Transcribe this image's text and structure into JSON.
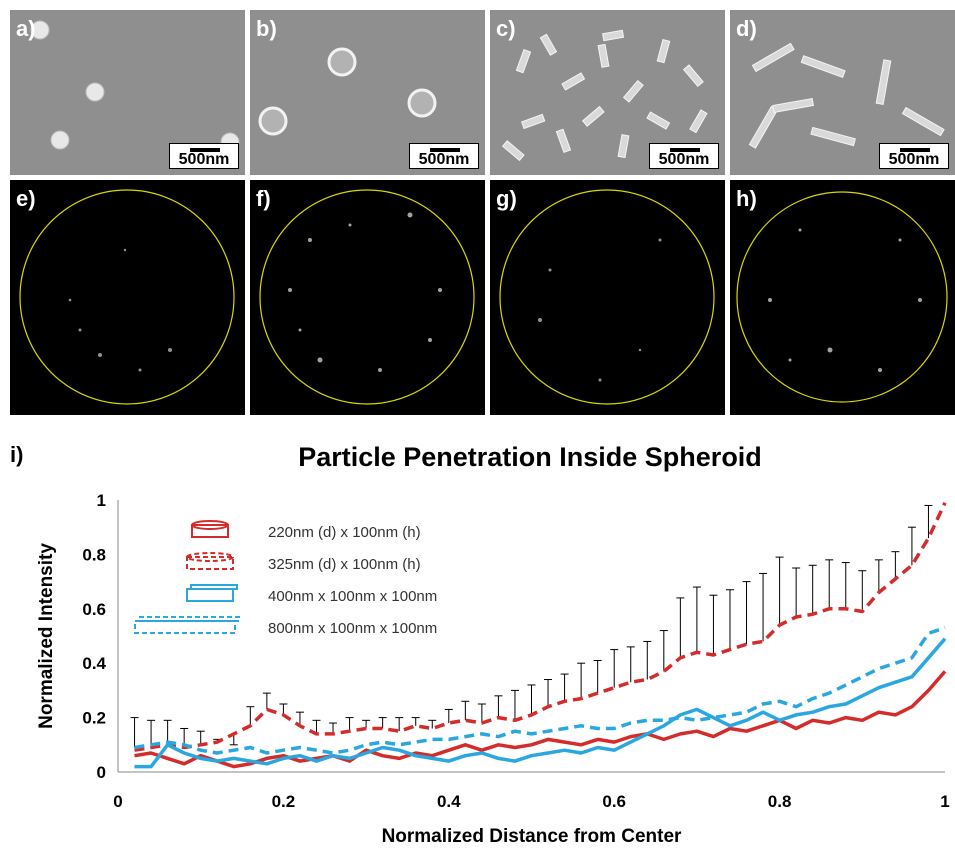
{
  "panels": {
    "a": "a)",
    "b": "b)",
    "c": "c)",
    "d": "d)",
    "e": "e)",
    "f": "f)",
    "g": "g)",
    "h": "h)",
    "i": "i)"
  },
  "scale_bar_label": "500nm",
  "colors": {
    "red": "#d42b2b",
    "blue": "#2aa7df",
    "circle": "#d8d800"
  },
  "chart_data": {
    "type": "line",
    "title": "Particle Penetration Inside Spheroid",
    "xlabel": "Normalized Distance from Center",
    "ylabel": "Normalized Intensity",
    "xlim": [
      0,
      1
    ],
    "ylim": [
      0,
      1
    ],
    "xticks": [
      "0",
      "0.2",
      "0.4",
      "0.6",
      "0.8",
      "1"
    ],
    "yticks": [
      "0",
      "0.2",
      "0.4",
      "0.6",
      "0.8",
      "1"
    ],
    "legend_position": "top-left",
    "series": [
      {
        "name": "220nm (d) x 100nm (h)",
        "color": "#d42b2b",
        "dash": false,
        "x": [
          0.02,
          0.04,
          0.06,
          0.08,
          0.1,
          0.12,
          0.14,
          0.16,
          0.18,
          0.2,
          0.22,
          0.24,
          0.26,
          0.28,
          0.3,
          0.32,
          0.34,
          0.36,
          0.38,
          0.4,
          0.42,
          0.44,
          0.46,
          0.48,
          0.5,
          0.52,
          0.54,
          0.56,
          0.58,
          0.6,
          0.62,
          0.64,
          0.66,
          0.68,
          0.7,
          0.72,
          0.74,
          0.76,
          0.78,
          0.8,
          0.82,
          0.84,
          0.86,
          0.88,
          0.9,
          0.92,
          0.94,
          0.96,
          0.98,
          1.0
        ],
        "y": [
          0.06,
          0.07,
          0.05,
          0.03,
          0.06,
          0.04,
          0.02,
          0.03,
          0.05,
          0.06,
          0.04,
          0.05,
          0.06,
          0.04,
          0.08,
          0.06,
          0.05,
          0.07,
          0.06,
          0.08,
          0.1,
          0.08,
          0.1,
          0.09,
          0.1,
          0.12,
          0.11,
          0.1,
          0.12,
          0.11,
          0.13,
          0.14,
          0.12,
          0.14,
          0.15,
          0.13,
          0.16,
          0.15,
          0.17,
          0.19,
          0.16,
          0.19,
          0.18,
          0.2,
          0.19,
          0.22,
          0.21,
          0.24,
          0.3,
          0.37
        ]
      },
      {
        "name": "325nm (d) x 100nm (h)",
        "color": "#d42b2b",
        "dash": true,
        "x": [
          0.02,
          0.04,
          0.06,
          0.08,
          0.1,
          0.12,
          0.14,
          0.16,
          0.18,
          0.2,
          0.22,
          0.24,
          0.26,
          0.28,
          0.3,
          0.32,
          0.34,
          0.36,
          0.38,
          0.4,
          0.42,
          0.44,
          0.46,
          0.48,
          0.5,
          0.52,
          0.54,
          0.56,
          0.58,
          0.6,
          0.62,
          0.64,
          0.66,
          0.68,
          0.7,
          0.72,
          0.74,
          0.76,
          0.78,
          0.8,
          0.82,
          0.84,
          0.86,
          0.88,
          0.9,
          0.92,
          0.94,
          0.96,
          0.98,
          1.0
        ],
        "y": [
          0.08,
          0.09,
          0.1,
          0.09,
          0.1,
          0.11,
          0.14,
          0.17,
          0.23,
          0.21,
          0.17,
          0.14,
          0.14,
          0.15,
          0.16,
          0.16,
          0.15,
          0.17,
          0.16,
          0.18,
          0.19,
          0.18,
          0.2,
          0.19,
          0.21,
          0.24,
          0.26,
          0.27,
          0.29,
          0.31,
          0.33,
          0.34,
          0.37,
          0.42,
          0.44,
          0.43,
          0.45,
          0.47,
          0.48,
          0.54,
          0.57,
          0.58,
          0.6,
          0.6,
          0.59,
          0.66,
          0.71,
          0.76,
          0.86,
          0.99
        ]
      },
      {
        "name": "400nm x 100nm x 100nm",
        "color": "#2aa7df",
        "dash": false,
        "x": [
          0.02,
          0.04,
          0.06,
          0.08,
          0.1,
          0.12,
          0.14,
          0.16,
          0.18,
          0.2,
          0.22,
          0.24,
          0.26,
          0.28,
          0.3,
          0.32,
          0.34,
          0.36,
          0.38,
          0.4,
          0.42,
          0.44,
          0.46,
          0.48,
          0.5,
          0.52,
          0.54,
          0.56,
          0.58,
          0.6,
          0.62,
          0.64,
          0.66,
          0.68,
          0.7,
          0.72,
          0.74,
          0.76,
          0.78,
          0.8,
          0.82,
          0.84,
          0.86,
          0.88,
          0.9,
          0.92,
          0.94,
          0.96,
          0.98,
          1.0
        ],
        "y": [
          0.02,
          0.02,
          0.1,
          0.07,
          0.05,
          0.04,
          0.05,
          0.04,
          0.03,
          0.05,
          0.06,
          0.04,
          0.06,
          0.05,
          0.07,
          0.09,
          0.08,
          0.06,
          0.05,
          0.04,
          0.06,
          0.07,
          0.05,
          0.04,
          0.06,
          0.07,
          0.08,
          0.07,
          0.09,
          0.08,
          0.11,
          0.14,
          0.17,
          0.21,
          0.23,
          0.2,
          0.17,
          0.19,
          0.22,
          0.19,
          0.21,
          0.22,
          0.24,
          0.25,
          0.28,
          0.31,
          0.33,
          0.35,
          0.42,
          0.49
        ]
      },
      {
        "name": "800nm x 100nm x 100nm",
        "color": "#2aa7df",
        "dash": true,
        "x": [
          0.02,
          0.04,
          0.06,
          0.08,
          0.1,
          0.12,
          0.14,
          0.16,
          0.18,
          0.2,
          0.22,
          0.24,
          0.26,
          0.28,
          0.3,
          0.32,
          0.34,
          0.36,
          0.38,
          0.4,
          0.42,
          0.44,
          0.46,
          0.48,
          0.5,
          0.52,
          0.54,
          0.56,
          0.58,
          0.6,
          0.62,
          0.64,
          0.66,
          0.68,
          0.7,
          0.72,
          0.74,
          0.76,
          0.78,
          0.8,
          0.82,
          0.84,
          0.86,
          0.88,
          0.9,
          0.92,
          0.94,
          0.96,
          0.98,
          1.0
        ],
        "y": [
          0.09,
          0.1,
          0.11,
          0.1,
          0.08,
          0.07,
          0.08,
          0.09,
          0.07,
          0.08,
          0.09,
          0.08,
          0.07,
          0.08,
          0.1,
          0.11,
          0.1,
          0.11,
          0.12,
          0.12,
          0.13,
          0.14,
          0.13,
          0.15,
          0.14,
          0.15,
          0.16,
          0.17,
          0.16,
          0.16,
          0.18,
          0.19,
          0.19,
          0.2,
          0.19,
          0.2,
          0.21,
          0.22,
          0.25,
          0.26,
          0.24,
          0.27,
          0.29,
          0.32,
          0.35,
          0.38,
          0.4,
          0.42,
          0.51,
          0.53
        ]
      }
    ],
    "error_bars": {
      "color": "#000000",
      "x": [
        0.02,
        0.04,
        0.06,
        0.08,
        0.1,
        0.12,
        0.14,
        0.16,
        0.18,
        0.2,
        0.22,
        0.24,
        0.26,
        0.28,
        0.3,
        0.32,
        0.34,
        0.36,
        0.38,
        0.4,
        0.42,
        0.44,
        0.46,
        0.48,
        0.5,
        0.52,
        0.54,
        0.56,
        0.58,
        0.6,
        0.62,
        0.64,
        0.66,
        0.68,
        0.7,
        0.72,
        0.74,
        0.76,
        0.78,
        0.8,
        0.82,
        0.84,
        0.86,
        0.88,
        0.9,
        0.92,
        0.94,
        0.96,
        0.98
      ],
      "upper": [
        0.2,
        0.19,
        0.19,
        0.16,
        0.15,
        0.12,
        0.1,
        0.24,
        0.29,
        0.25,
        0.22,
        0.19,
        0.18,
        0.2,
        0.19,
        0.2,
        0.2,
        0.2,
        0.19,
        0.23,
        0.26,
        0.25,
        0.28,
        0.3,
        0.32,
        0.34,
        0.36,
        0.4,
        0.41,
        0.45,
        0.46,
        0.48,
        0.52,
        0.64,
        0.68,
        0.65,
        0.67,
        0.7,
        0.73,
        0.79,
        0.75,
        0.76,
        0.78,
        0.77,
        0.74,
        0.78,
        0.81,
        0.9,
        0.98
      ]
    }
  }
}
